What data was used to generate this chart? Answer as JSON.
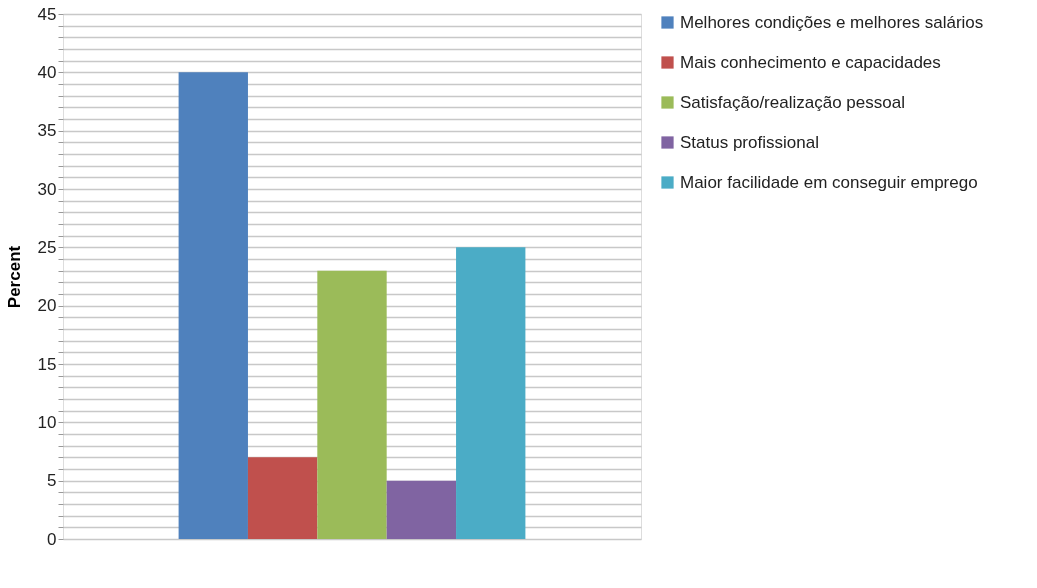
{
  "chart_data": {
    "type": "bar",
    "ylabel": "Percent",
    "categories": [
      null
    ],
    "series": [
      {
        "name": "Melhores condições e melhores salários",
        "color": "#4f81bd",
        "values": [
          40
        ]
      },
      {
        "name": "Mais conhecimento e capacidades",
        "color": "#c0504d",
        "values": [
          7
        ]
      },
      {
        "name": "Satisfação/realização pessoal",
        "color": "#9bbb59",
        "values": [
          23
        ]
      },
      {
        "name": "Status profissional",
        "color": "#8064a2",
        "values": [
          5
        ]
      },
      {
        "name": "Maior facilidade em conseguir emprego",
        "color": "#4bacc6",
        "values": [
          25
        ]
      }
    ],
    "ylim": [
      0,
      45
    ],
    "yticks": [
      0,
      {
        "value": 1,
        "label": null
      },
      {
        "value": 2,
        "label": null
      },
      {
        "value": 3,
        "label": null
      },
      {
        "value": 4,
        "label": null
      },
      5,
      {
        "value": 6,
        "label": null
      },
      {
        "value": 7,
        "label": null
      },
      {
        "value": 8,
        "label": null
      },
      {
        "value": 9,
        "label": null
      },
      10,
      {
        "value": 11,
        "label": null
      },
      {
        "value": 12,
        "label": null
      },
      {
        "value": 13,
        "label": null
      },
      {
        "value": 14,
        "label": null
      },
      15,
      {
        "value": 16,
        "label": null
      },
      {
        "value": 17,
        "label": null
      },
      {
        "value": 18,
        "label": null
      },
      {
        "value": 19,
        "label": null
      },
      20,
      {
        "value": 21,
        "label": null
      },
      {
        "value": 22,
        "label": null
      },
      {
        "value": 23,
        "label": null
      },
      {
        "value": 24,
        "label": null
      },
      25,
      {
        "value": 26,
        "label": null
      },
      {
        "value": 27,
        "label": null
      },
      {
        "value": 28,
        "label": null
      },
      {
        "value": 29,
        "label": null
      },
      30,
      {
        "value": 31,
        "label": null
      },
      {
        "value": 32,
        "label": null
      },
      {
        "value": 33,
        "label": null
      },
      {
        "value": 34,
        "label": null
      },
      35,
      {
        "value": 36,
        "label": null
      },
      {
        "value": 37,
        "label": null
      },
      {
        "value": 38,
        "label": null
      },
      {
        "value": 39,
        "label": null
      },
      40,
      {
        "value": 41,
        "label": null
      },
      {
        "value": 42,
        "label": null
      },
      {
        "value": 43,
        "label": null
      },
      {
        "value": 44,
        "label": null
      },
      45
    ],
    "grid": "y",
    "legend": "right",
    "tick_labels": "y"
  }
}
